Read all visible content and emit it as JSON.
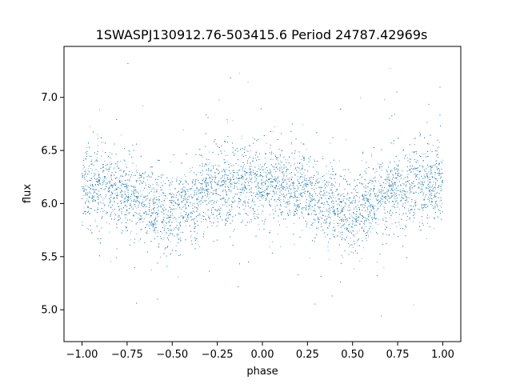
{
  "chart_data": {
    "type": "scatter",
    "title": "1SWASPJ130912.76-503415.6 Period 24787.42969s",
    "xlabel": "phase",
    "ylabel": "flux",
    "xlim": [
      -1.1,
      1.1
    ],
    "ylim": [
      4.7,
      7.48
    ],
    "x_ticks": [
      -1.0,
      -0.75,
      -0.5,
      -0.25,
      0.0,
      0.25,
      0.5,
      0.75,
      1.0
    ],
    "x_tick_labels": [
      "−1.00",
      "−0.75",
      "−0.50",
      "−0.25",
      "0.00",
      "0.25",
      "0.50",
      "0.75",
      "1.00"
    ],
    "y_ticks": [
      5.0,
      5.5,
      6.0,
      6.5,
      7.0
    ],
    "y_tick_labels": [
      "5.0",
      "5.5",
      "6.0",
      "6.5",
      "7.0"
    ],
    "grid": false,
    "marker_color": "#1f77b4",
    "series": [
      {
        "x_range": [
          -1.0,
          1.0
        ],
        "binned_trend": {
          "x": [
            -1.0,
            -0.75,
            -0.55,
            -0.5,
            -0.45,
            -0.25,
            0.0,
            0.25,
            0.45,
            0.5,
            0.55,
            0.75,
            1.0
          ],
          "y": [
            6.15,
            6.1,
            5.92,
            5.9,
            5.95,
            6.15,
            6.2,
            6.1,
            5.92,
            5.9,
            5.95,
            6.15,
            6.18
          ]
        },
        "typical_scatter": 0.18,
        "approx_point_count": 20000
      }
    ]
  }
}
